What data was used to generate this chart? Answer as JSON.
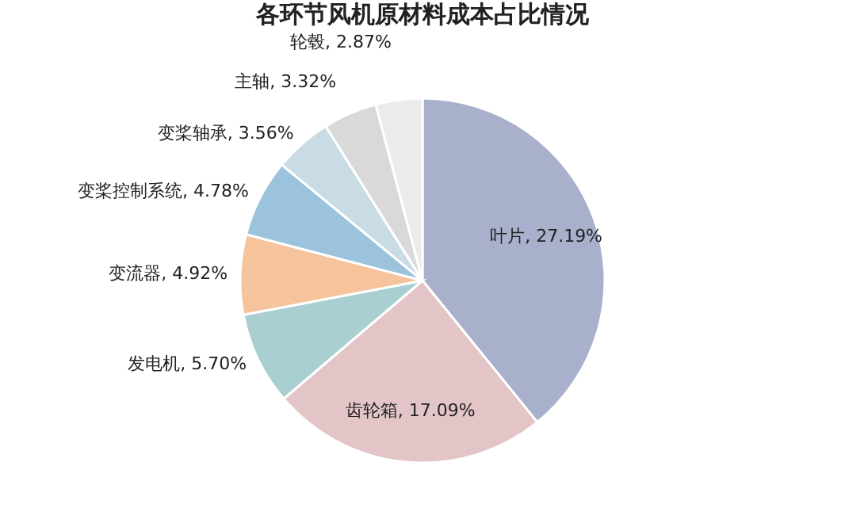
{
  "chart_data": {
    "type": "pie",
    "title": "各环节风机原材料成本占比情况",
    "categories": [
      "叶片",
      "齿轮箱",
      "发电机",
      "变流器",
      "变桨控制系统",
      "变桨轴承",
      "主轴",
      "轮毂"
    ],
    "values": [
      27.19,
      17.09,
      5.7,
      4.92,
      4.78,
      3.56,
      3.32,
      2.87
    ],
    "value_labels": [
      "27.19%",
      "17.09%",
      "5.70%",
      "4.92%",
      "4.78%",
      "3.56%",
      "3.32%",
      "2.87%"
    ],
    "colors": [
      "#a9b0cc",
      "#e3c5c8",
      "#a9cfd0",
      "#f5c49c",
      "#9cc3dc",
      "#c9dce6",
      "#d9d9d9",
      "#ebebeb"
    ],
    "legend": false
  }
}
